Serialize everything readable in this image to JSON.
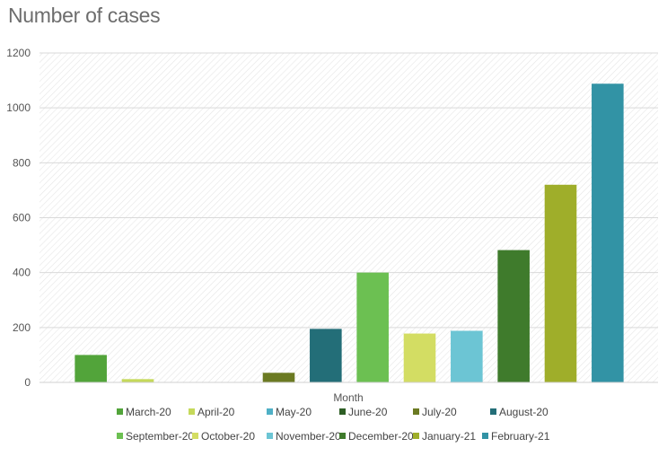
{
  "chart_data": {
    "type": "bar",
    "title": "Number of cases",
    "xlabel": "Month",
    "ylabel": "",
    "ylim": [
      0,
      1200
    ],
    "yticks": [
      0,
      200,
      400,
      600,
      800,
      1000,
      1200
    ],
    "grid": true,
    "legend_position": "bottom",
    "series": [
      {
        "name": "March-20",
        "value": 100,
        "color": "#52a43a"
      },
      {
        "name": "April-20",
        "value": 12,
        "color": "#c5d95a"
      },
      {
        "name": "May-20",
        "value": 0,
        "color": "#4fb0c6"
      },
      {
        "name": "June-20",
        "value": 0,
        "color": "#2e5e25"
      },
      {
        "name": "July-20",
        "value": 35,
        "color": "#6b7a22"
      },
      {
        "name": "August-20",
        "value": 195,
        "color": "#236e78"
      },
      {
        "name": "September-20",
        "value": 400,
        "color": "#6cc052"
      },
      {
        "name": "October-20",
        "value": 178,
        "color": "#d3dd63"
      },
      {
        "name": "November-20",
        "value": 188,
        "color": "#6cc5d4"
      },
      {
        "name": "December-20",
        "value": 482,
        "color": "#3f7b2c"
      },
      {
        "name": "January-21",
        "value": 720,
        "color": "#9fae2a"
      },
      {
        "name": "February-21",
        "value": 1088,
        "color": "#3293a5"
      }
    ]
  }
}
